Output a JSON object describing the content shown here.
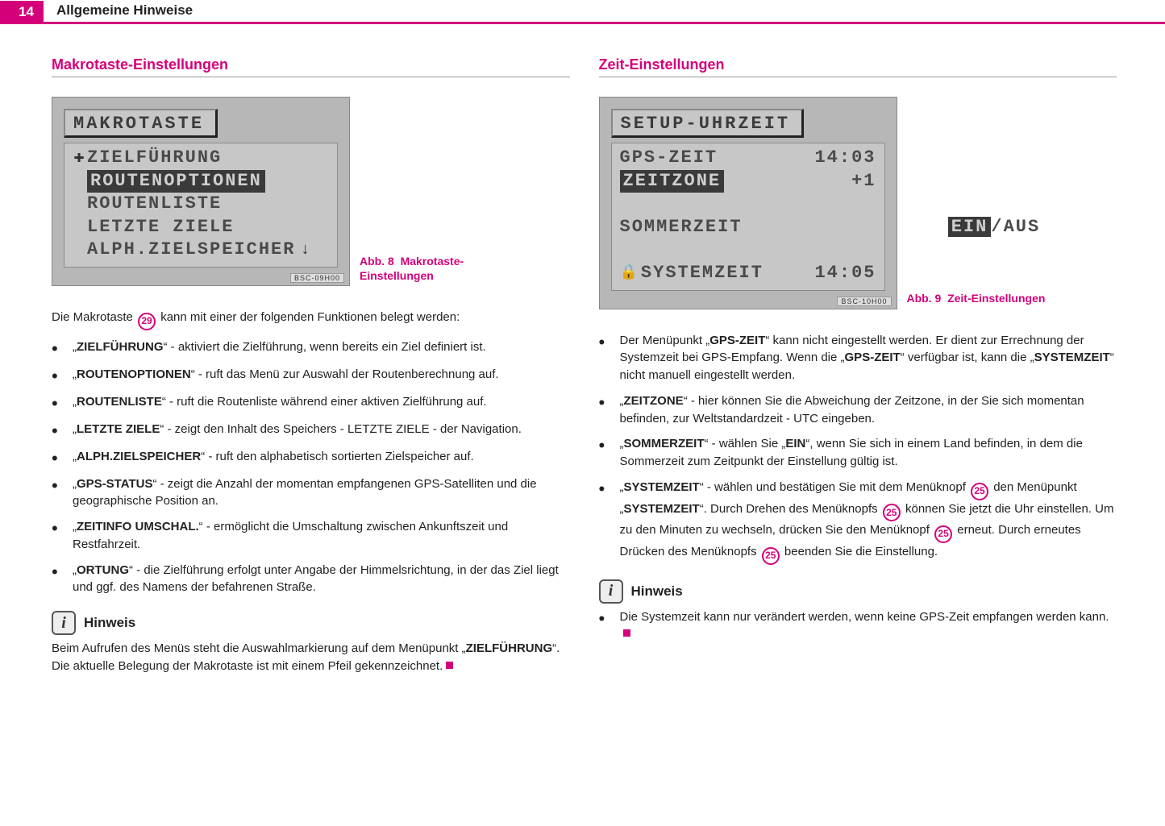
{
  "page_number": "14",
  "header_title": "Allgemeine Hinweise",
  "left": {
    "section_title": "Makrotaste-Einstellungen",
    "device": {
      "title": "MAKROTASTE",
      "lines": [
        {
          "marker": "✚",
          "label": "ZIELFÜHRUNG",
          "selected": false
        },
        {
          "marker": "",
          "label": "ROUTENOPTIONEN",
          "selected": true
        },
        {
          "marker": "",
          "label": "ROUTENLISTE",
          "selected": false
        },
        {
          "marker": "",
          "label": "LETZTE ZIELE",
          "selected": false
        },
        {
          "marker": "",
          "label": "ALPH.ZIELSPEICHER",
          "selected": false,
          "trailing_arrow": true
        }
      ],
      "tag": "BSC-09H00"
    },
    "caption_ref": "Abb. 8",
    "caption_text": "Makrotaste-Einstellungen",
    "intro_a": "Die Makrotaste ",
    "intro_ref": "29",
    "intro_b": " kann mit einer der folgenden Funktionen belegt werden:",
    "bullets": [
      {
        "term": "ZIELFÜHRUNG",
        "desc": " - aktiviert die Zielführung, wenn bereits ein Ziel definiert ist."
      },
      {
        "term": "ROUTENOPTIONEN",
        "desc": " - ruft das Menü zur Auswahl der Routenberechnung auf."
      },
      {
        "term": "ROUTENLISTE",
        "desc": " - ruft die Routenliste während einer aktiven Zielführung auf."
      },
      {
        "term": "LETZTE ZIELE",
        "desc": " - zeigt den Inhalt des Speichers - LETZTE ZIELE - der Navigation."
      },
      {
        "term": "ALPH.ZIELSPEICHER",
        "desc": " - ruft den alphabetisch sortierten Zielspeicher auf."
      },
      {
        "term": "GPS-STATUS",
        "desc": " - zeigt die Anzahl der momentan empfangenen GPS-Satelliten und die geographische Position an."
      },
      {
        "term": "ZEITINFO UMSCHAL.",
        "desc": " - ermöglicht die Umschaltung zwischen Ankunftszeit und Restfahrzeit."
      },
      {
        "term": "ORTUNG",
        "desc": " - die Zielführung erfolgt unter Angabe der Himmelsrichtung, in der das Ziel liegt und ggf. des Namens der befahrenen Straße."
      }
    ],
    "hinweis_label": "Hinweis",
    "hinweis_a": "Beim Aufrufen des Menüs steht die Auswahlmarkierung auf dem Menüpunkt „",
    "hinweis_term": "ZIELFÜHRUNG",
    "hinweis_b": "“. Die aktuelle Belegung der Makrotaste ist mit einem Pfeil gekennzeichnet."
  },
  "right": {
    "section_title": "Zeit-Einstellungen",
    "device": {
      "title": "SETUP-UHRZEIT",
      "rows": [
        {
          "label": "GPS-ZEIT",
          "value": "14:03",
          "selected": false,
          "lock": false
        },
        {
          "label": "ZEITZONE",
          "value": "+1",
          "selected": true,
          "lock": false
        },
        {
          "label": "SOMMERZEIT",
          "value_ein": "EIN",
          "value_aus": "AUS",
          "ein_selected": true,
          "lock": false
        },
        {
          "label": "SYSTEMZEIT",
          "value": "14:05",
          "selected": false,
          "lock": true
        }
      ],
      "tag": "BSC-10H00"
    },
    "caption_ref": "Abb. 9",
    "caption_text": "Zeit-Einstellungen",
    "b1_a": "Der Menüpunkt „",
    "b1_t1": "GPS-ZEIT",
    "b1_b": "“ kann nicht eingestellt werden. Er dient zur Errechnung der Systemzeit bei GPS-Empfang. Wenn die „",
    "b1_t2": "GPS-ZEIT",
    "b1_c": "“ verfügbar ist, kann die „",
    "b1_t3": "SYSTEMZEIT",
    "b1_d": "“ nicht manuell eingestellt werden.",
    "b2_t": "ZEITZONE",
    "b2_desc": "“ - hier können Sie die Abweichung der Zeitzone, in der Sie sich momentan befinden, zur Weltstandardzeit - UTC eingeben.",
    "b3_t": "SOMMERZEIT",
    "b3_a": "“ - wählen Sie „",
    "b3_ein": "EIN",
    "b3_b": "“, wenn Sie sich in einem Land befinden, in dem die Sommerzeit zum Zeitpunkt der Einstellung gültig ist.",
    "b4_t": "SYSTEMZEIT",
    "b4_a": "“ - wählen und bestätigen Sie mit dem Menüknopf ",
    "b4_b": " den Menüpunkt „",
    "b4_t2": "SYSTEMZEIT",
    "b4_c": "“. Durch Drehen des Menüknopfs ",
    "b4_d": " können Sie jetzt die Uhr einstellen. Um zu den Minuten zu wechseln, drücken Sie den Menüknopf ",
    "b4_e": " erneut. Durch erneutes Drücken des Menüknopfs ",
    "b4_f": " beenden Sie die Einstellung.",
    "ref25": "25",
    "hinweis_label": "Hinweis",
    "hinweis_text": "Die Systemzeit kann nur verändert werden, wenn keine GPS-Zeit empfangen werden kann."
  }
}
